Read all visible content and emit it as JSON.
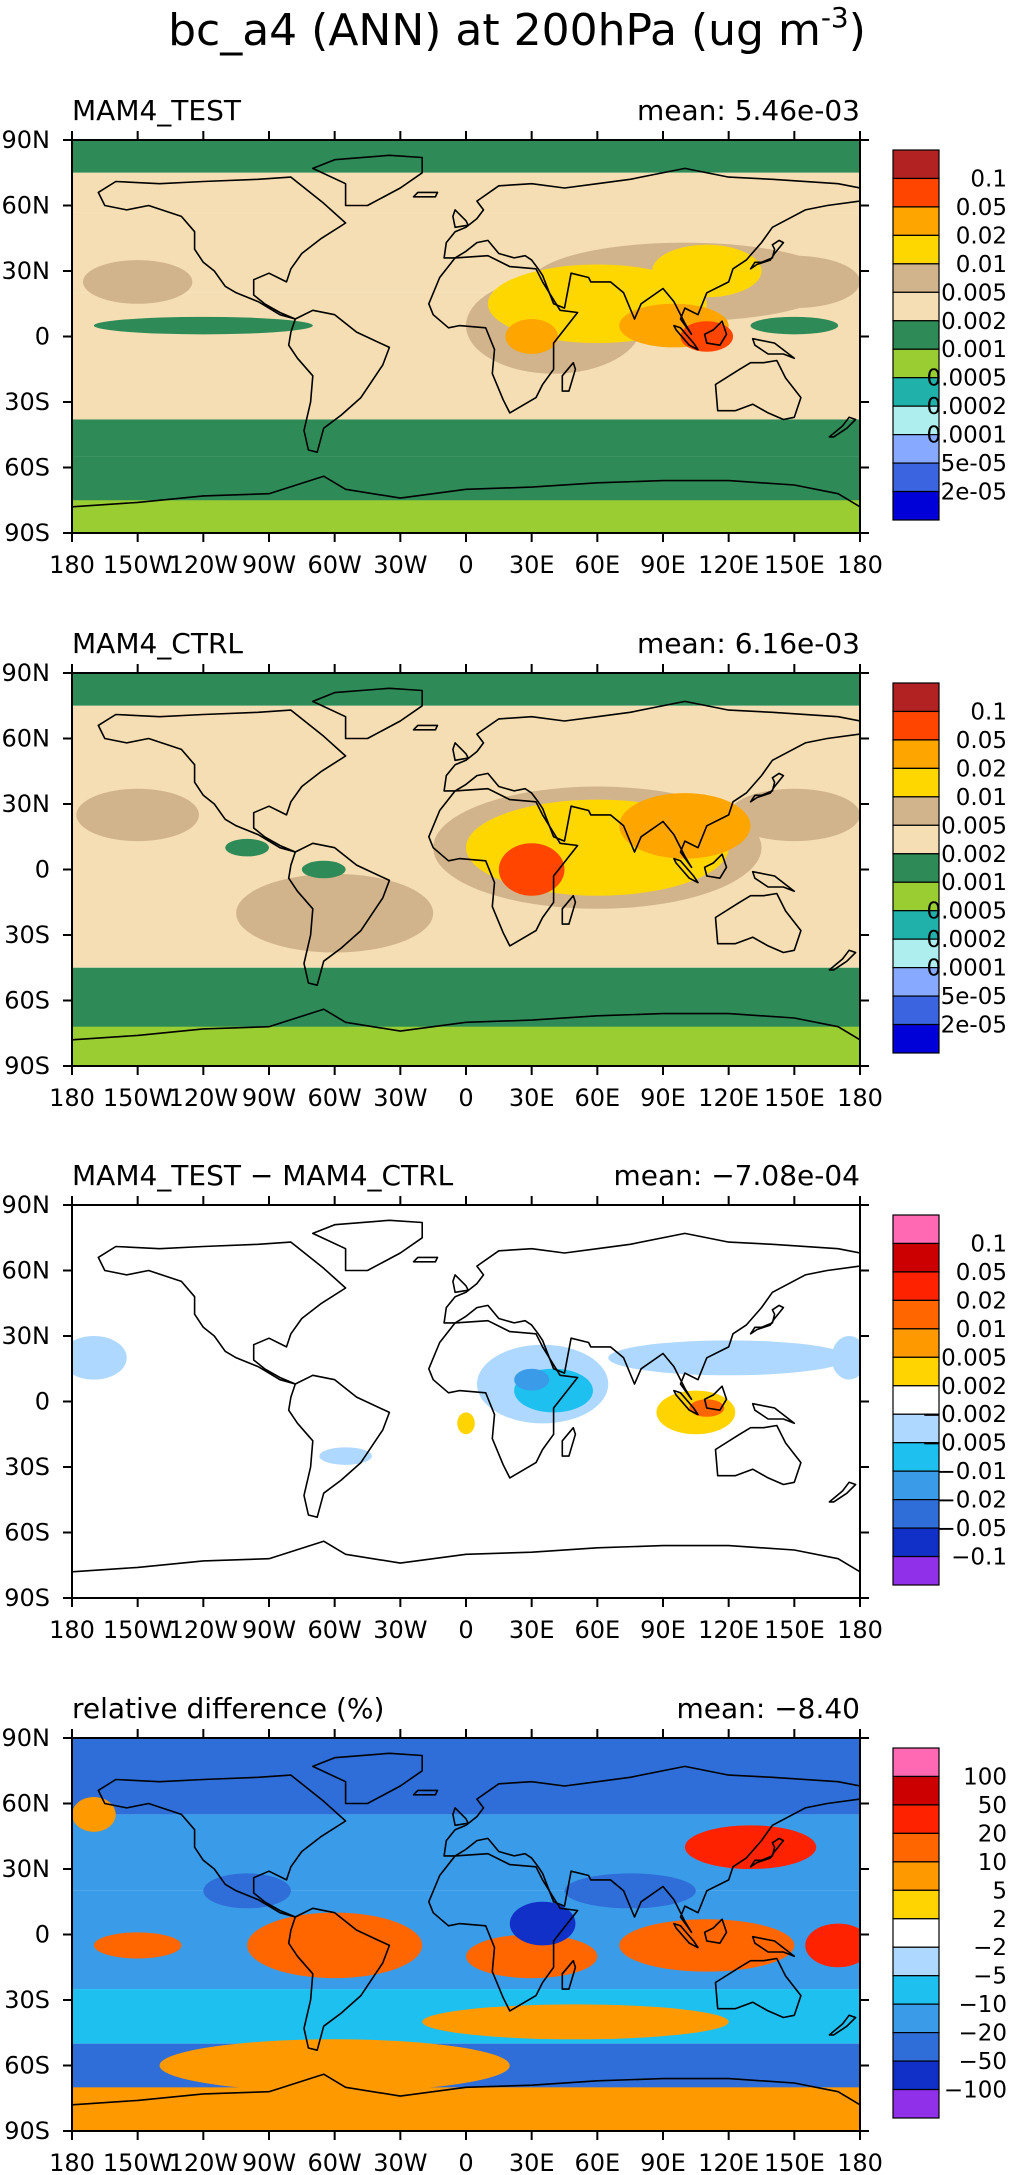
{
  "figure": {
    "title": "bc_a4 (ANN) at 200hPa (ug m",
    "title_sup": "-3",
    "title_close": ")"
  },
  "chart_data": [
    {
      "type": "heatmap",
      "title": "MAM4_TEST",
      "mean_label": "mean: 5.46e-03",
      "x_ticks": [
        "180",
        "150W",
        "120W",
        "90W",
        "60W",
        "30W",
        "0",
        "30E",
        "60E",
        "90E",
        "120E",
        "150E",
        "180"
      ],
      "y_ticks": [
        "90N",
        "60N",
        "30N",
        "0",
        "30S",
        "60S",
        "90S"
      ],
      "xlim": [
        -180,
        180
      ],
      "ylim": [
        -90,
        90
      ],
      "colorbar": {
        "labels": [
          "0.1",
          "0.05",
          "0.02",
          "0.01",
          "0.005",
          "0.002",
          "0.001",
          "0.0005",
          "0.0002",
          "0.0001",
          "5e-05",
          "2e-05"
        ],
        "colors": [
          "#b22222",
          "#ff4500",
          "#ffa500",
          "#ffd700",
          "#d2b48c",
          "#f5deb3",
          "#2e8b57",
          "#9acd32",
          "#20b2aa",
          "#afeeee",
          "#87a9ff",
          "#3a64e0",
          "#0000d8"
        ]
      },
      "zones": [
        {
          "lat": [
            75,
            90
          ],
          "level": 6
        },
        {
          "lat": [
            57,
            75
          ],
          "level": 5
        },
        {
          "lat": [
            20,
            57
          ],
          "level": 5
        },
        {
          "lat": [
            -38,
            20
          ],
          "level": 5
        },
        {
          "lat": [
            -55,
            -38
          ],
          "level": 6
        },
        {
          "lat": [
            -90,
            -55
          ],
          "level": 6
        },
        {
          "lat": [
            -90,
            -75
          ],
          "level": 7
        }
      ],
      "blobs": [
        {
          "lon": 100,
          "lat": 25,
          "rx": 70,
          "ry": 18,
          "level": 4
        },
        {
          "lon": 40,
          "lat": 5,
          "rx": 40,
          "ry": 22,
          "level": 4
        },
        {
          "lon": -150,
          "lat": 25,
          "rx": 25,
          "ry": 10,
          "level": 4
        },
        {
          "lon": 150,
          "lat": 25,
          "rx": 30,
          "ry": 12,
          "level": 4
        },
        {
          "lon": 60,
          "lat": 15,
          "rx": 50,
          "ry": 18,
          "level": 3
        },
        {
          "lon": 110,
          "lat": 30,
          "rx": 25,
          "ry": 12,
          "level": 3
        },
        {
          "lon": 30,
          "lat": 0,
          "rx": 12,
          "ry": 8,
          "level": 2
        },
        {
          "lon": 95,
          "lat": 5,
          "rx": 25,
          "ry": 10,
          "level": 2
        },
        {
          "lon": 110,
          "lat": 0,
          "rx": 12,
          "ry": 7,
          "level": 1
        },
        {
          "lon": -120,
          "lat": 5,
          "rx": 50,
          "ry": 4,
          "level": 6
        },
        {
          "lon": 150,
          "lat": 5,
          "rx": 20,
          "ry": 4,
          "level": 6
        }
      ]
    },
    {
      "type": "heatmap",
      "title": "MAM4_CTRL",
      "mean_label": "mean: 6.16e-03",
      "x_ticks": [
        "180",
        "150W",
        "120W",
        "90W",
        "60W",
        "30W",
        "0",
        "30E",
        "60E",
        "90E",
        "120E",
        "150E",
        "180"
      ],
      "y_ticks": [
        "90N",
        "60N",
        "30N",
        "0",
        "30S",
        "60S",
        "90S"
      ],
      "xlim": [
        -180,
        180
      ],
      "ylim": [
        -90,
        90
      ],
      "colorbar": {
        "labels": [
          "0.1",
          "0.05",
          "0.02",
          "0.01",
          "0.005",
          "0.002",
          "0.001",
          "0.0005",
          "0.0002",
          "0.0001",
          "5e-05",
          "2e-05"
        ],
        "colors": [
          "#b22222",
          "#ff4500",
          "#ffa500",
          "#ffd700",
          "#d2b48c",
          "#f5deb3",
          "#2e8b57",
          "#9acd32",
          "#20b2aa",
          "#afeeee",
          "#87a9ff",
          "#3a64e0",
          "#0000d8"
        ]
      },
      "zones": [
        {
          "lat": [
            75,
            90
          ],
          "level": 6
        },
        {
          "lat": [
            -45,
            75
          ],
          "level": 5
        },
        {
          "lat": [
            -90,
            -45
          ],
          "level": 6
        },
        {
          "lat": [
            -90,
            -72
          ],
          "level": 7
        }
      ],
      "blobs": [
        {
          "lon": -150,
          "lat": 25,
          "rx": 28,
          "ry": 12,
          "level": 4
        },
        {
          "lon": 150,
          "lat": 25,
          "rx": 30,
          "ry": 12,
          "level": 4
        },
        {
          "lon": -60,
          "lat": -20,
          "rx": 45,
          "ry": 18,
          "level": 4
        },
        {
          "lon": 60,
          "lat": 10,
          "rx": 75,
          "ry": 28,
          "level": 4
        },
        {
          "lon": 60,
          "lat": 10,
          "rx": 60,
          "ry": 22,
          "level": 3
        },
        {
          "lon": 100,
          "lat": 20,
          "rx": 30,
          "ry": 15,
          "level": 2
        },
        {
          "lon": 30,
          "lat": 0,
          "rx": 15,
          "ry": 12,
          "level": 1
        },
        {
          "lon": -100,
          "lat": 10,
          "rx": 10,
          "ry": 4,
          "level": 6
        },
        {
          "lon": -65,
          "lat": 0,
          "rx": 10,
          "ry": 4,
          "level": 6
        }
      ]
    },
    {
      "type": "heatmap",
      "title": "MAM4_TEST − MAM4_CTRL",
      "mean_label": "mean: −7.08e-04",
      "x_ticks": [
        "180",
        "150W",
        "120W",
        "90W",
        "60W",
        "30W",
        "0",
        "30E",
        "60E",
        "90E",
        "120E",
        "150E",
        "180"
      ],
      "y_ticks": [
        "90N",
        "60N",
        "30N",
        "0",
        "30S",
        "60S",
        "90S"
      ],
      "xlim": [
        -180,
        180
      ],
      "ylim": [
        -90,
        90
      ],
      "colorbar": {
        "labels": [
          "0.1",
          "0.05",
          "0.02",
          "0.01",
          "0.005",
          "0.002",
          "−0.002",
          "−0.005",
          "−0.01",
          "−0.02",
          "−0.05",
          "−0.1"
        ],
        "colors": [
          "#ff69b4",
          "#cc0000",
          "#ff2200",
          "#ff6600",
          "#ff9900",
          "#ffd400",
          "#ffffff",
          "#aed8ff",
          "#1ec0f0",
          "#3a9be8",
          "#2f6ed8",
          "#1030c8",
          "#9030e8"
        ]
      },
      "zones": [
        {
          "lat": [
            -90,
            90
          ],
          "level": 6
        }
      ],
      "blobs": [
        {
          "lon": 35,
          "lat": 8,
          "rx": 30,
          "ry": 18,
          "level": 7
        },
        {
          "lon": 120,
          "lat": 20,
          "rx": 55,
          "ry": 8,
          "level": 7
        },
        {
          "lon": -170,
          "lat": 20,
          "rx": 15,
          "ry": 10,
          "level": 7
        },
        {
          "lon": 175,
          "lat": 20,
          "rx": 8,
          "ry": 10,
          "level": 7
        },
        {
          "lon": 40,
          "lat": 5,
          "rx": 18,
          "ry": 10,
          "level": 8
        },
        {
          "lon": 30,
          "lat": 10,
          "rx": 8,
          "ry": 5,
          "level": 9
        },
        {
          "lon": 105,
          "lat": -5,
          "rx": 18,
          "ry": 10,
          "level": 5
        },
        {
          "lon": 110,
          "lat": -3,
          "rx": 8,
          "ry": 4,
          "level": 3
        },
        {
          "lon": 0,
          "lat": -10,
          "rx": 4,
          "ry": 5,
          "level": 5
        },
        {
          "lon": -55,
          "lat": -25,
          "rx": 12,
          "ry": 4,
          "level": 7
        }
      ]
    },
    {
      "type": "heatmap",
      "title": "relative difference (%)",
      "mean_label": "mean: −8.40",
      "x_ticks": [
        "180",
        "150W",
        "120W",
        "90W",
        "60W",
        "30W",
        "0",
        "30E",
        "60E",
        "90E",
        "120E",
        "150E",
        "180"
      ],
      "y_ticks": [
        "90N",
        "60N",
        "30N",
        "0",
        "30S",
        "60S",
        "90S"
      ],
      "xlim": [
        -180,
        180
      ],
      "ylim": [
        -90,
        90
      ],
      "colorbar": {
        "labels": [
          "100",
          "50",
          "20",
          "10",
          "5",
          "2",
          "−2",
          "−5",
          "−10",
          "−20",
          "−50",
          "−100"
        ],
        "colors": [
          "#ff69b4",
          "#cc0000",
          "#ff2200",
          "#ff6600",
          "#ff9900",
          "#ffd400",
          "#ffffff",
          "#aed8ff",
          "#1ec0f0",
          "#3a9be8",
          "#2f6ed8",
          "#1030c8",
          "#9030e8"
        ]
      },
      "zones": [
        {
          "lat": [
            55,
            90
          ],
          "level": 10
        },
        {
          "lat": [
            20,
            55
          ],
          "level": 9
        },
        {
          "lat": [
            -25,
            20
          ],
          "level": 9
        },
        {
          "lat": [
            -50,
            -25
          ],
          "level": 8
        },
        {
          "lat": [
            -90,
            -50
          ],
          "level": 10
        },
        {
          "lat": [
            -90,
            -70
          ],
          "level": 4
        }
      ],
      "blobs": [
        {
          "lon": -60,
          "lat": -60,
          "rx": 80,
          "ry": 12,
          "level": 4
        },
        {
          "lon": 50,
          "lat": -40,
          "rx": 70,
          "ry": 8,
          "level": 4
        },
        {
          "lon": -60,
          "lat": -5,
          "rx": 40,
          "ry": 15,
          "level": 3
        },
        {
          "lon": 30,
          "lat": -10,
          "rx": 30,
          "ry": 10,
          "level": 3
        },
        {
          "lon": 110,
          "lat": -5,
          "rx": 40,
          "ry": 12,
          "level": 3
        },
        {
          "lon": 130,
          "lat": 40,
          "rx": 30,
          "ry": 10,
          "level": 2
        },
        {
          "lon": -150,
          "lat": -5,
          "rx": 20,
          "ry": 6,
          "level": 3
        },
        {
          "lon": -170,
          "lat": 55,
          "rx": 10,
          "ry": 8,
          "level": 4
        },
        {
          "lon": 35,
          "lat": 5,
          "rx": 15,
          "ry": 10,
          "level": 11
        },
        {
          "lon": 170,
          "lat": -5,
          "rx": 15,
          "ry": 10,
          "level": 2
        },
        {
          "lon": -100,
          "lat": 20,
          "rx": 20,
          "ry": 8,
          "level": 10
        },
        {
          "lon": 75,
          "lat": 20,
          "rx": 30,
          "ry": 8,
          "level": 10
        }
      ]
    }
  ]
}
